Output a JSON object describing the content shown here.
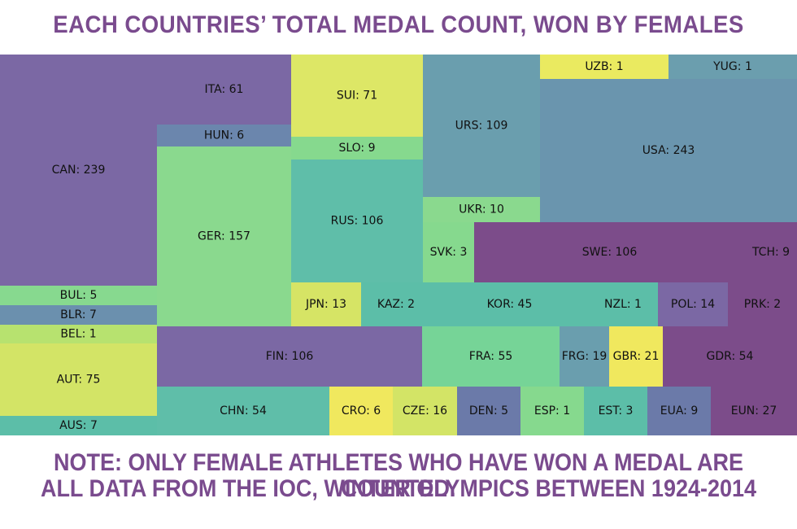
{
  "title": "Each countries’ total medal count, won by females",
  "notes": [
    "Note: only female athletes who have won a medal are counted.",
    "All data from the IOC, Winter Olympics between 1924-2014"
  ],
  "chart_data": {
    "type": "treemap",
    "label_format": "{country}: {count}",
    "cells": [
      {
        "country": "CAN",
        "count": 239,
        "color": "#7b68a4"
      },
      {
        "country": "BUL",
        "count": 5,
        "color": "#87d98f"
      },
      {
        "country": "BLR",
        "count": 7,
        "color": "#6b90ae"
      },
      {
        "country": "BEL",
        "count": 1,
        "color": "#b7e26f"
      },
      {
        "country": "AUT",
        "count": 75,
        "color": "#d3e466"
      },
      {
        "country": "AUS",
        "count": 7,
        "color": "#5cbea8"
      },
      {
        "country": "ITA",
        "count": 61,
        "color": "#7b68a4"
      },
      {
        "country": "HUN",
        "count": 6,
        "color": "#6b86ad"
      },
      {
        "country": "GER",
        "count": 157,
        "color": "#8ad98e"
      },
      {
        "country": "SUI",
        "count": 71,
        "color": "#dde766"
      },
      {
        "country": "SLO",
        "count": 9,
        "color": "#86d98e"
      },
      {
        "country": "RUS",
        "count": 106,
        "color": "#5fbea9"
      },
      {
        "country": "URS",
        "count": 109,
        "color": "#6a9eae"
      },
      {
        "country": "UKR",
        "count": 10,
        "color": "#8ad98e"
      },
      {
        "country": "SVK",
        "count": 3,
        "color": "#86d98e"
      },
      {
        "country": "UZB",
        "count": 1,
        "color": "#eaea60"
      },
      {
        "country": "YUG",
        "count": 1,
        "color": "#6b9eae"
      },
      {
        "country": "USA",
        "count": 243,
        "color": "#6a95ae"
      },
      {
        "country": "SWE",
        "count": 106,
        "color": "#7c4c8a"
      },
      {
        "country": "TCH",
        "count": 9,
        "color": "#7c4c8a"
      },
      {
        "country": "JPN",
        "count": 13,
        "color": "#d6e465"
      },
      {
        "country": "KAZ",
        "count": 2,
        "color": "#5cbea8"
      },
      {
        "country": "KOR",
        "count": 45,
        "color": "#5cbea8"
      },
      {
        "country": "NZL",
        "count": 1,
        "color": "#5cbea8"
      },
      {
        "country": "POL",
        "count": 14,
        "color": "#7b68a4"
      },
      {
        "country": "PRK",
        "count": 2,
        "color": "#7c4c8a"
      },
      {
        "country": "FIN",
        "count": 106,
        "color": "#7b68a4"
      },
      {
        "country": "FRA",
        "count": 55,
        "color": "#76d497"
      },
      {
        "country": "FRG",
        "count": 19,
        "color": "#6a9eae"
      },
      {
        "country": "GBR",
        "count": 21,
        "color": "#f0e85e"
      },
      {
        "country": "GDR",
        "count": 54,
        "color": "#7c4c8a"
      },
      {
        "country": "CHN",
        "count": 54,
        "color": "#5fbea9"
      },
      {
        "country": "CRO",
        "count": 6,
        "color": "#f0e85e"
      },
      {
        "country": "CZE",
        "count": 16,
        "color": "#d3e466"
      },
      {
        "country": "DEN",
        "count": 5,
        "color": "#6b7aa9"
      },
      {
        "country": "ESP",
        "count": 1,
        "color": "#86d98e"
      },
      {
        "country": "EST",
        "count": 3,
        "color": "#5cbea8"
      },
      {
        "country": "EUA",
        "count": 9,
        "color": "#6b7aa9"
      },
      {
        "country": "EUN",
        "count": 27,
        "color": "#7c4c8a"
      }
    ]
  }
}
